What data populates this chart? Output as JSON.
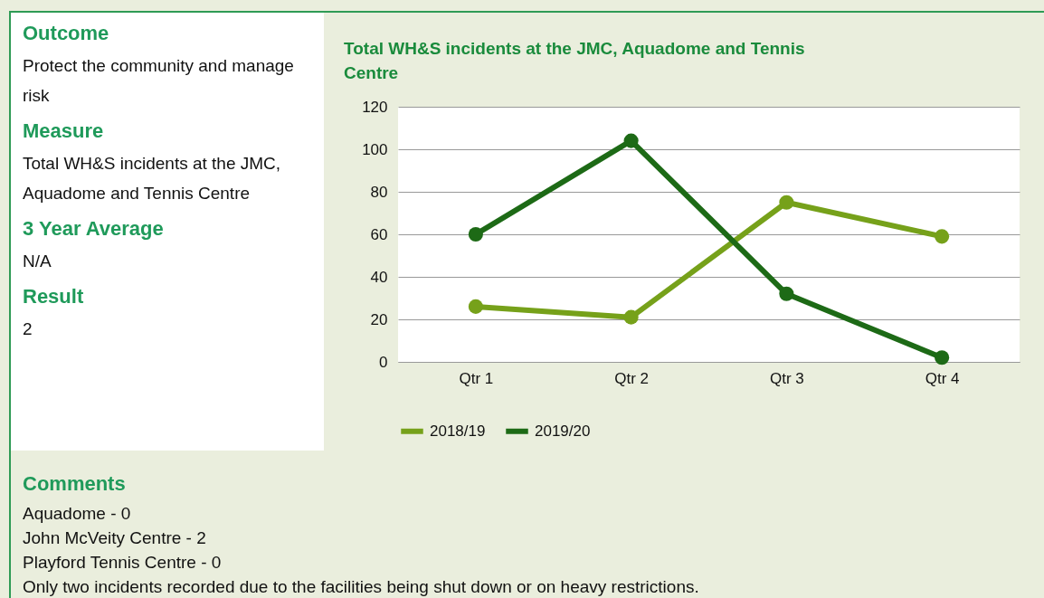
{
  "chart_data": [
    {
      "type": "other",
      "annotations": [
        "Outcome",
        "Protect the community and manage risk",
        "Measure",
        "Total WH&S incidents at the JMC, Aquadome and Tennis Centre",
        "3 Year Average",
        "N/A",
        "Result",
        "2"
      ]
    },
    {
      "type": "line",
      "title": "Total WH&S incidents at the JMC, Aquadome and Tennis Centre",
      "categories": [
        "Qtr 1",
        "Qtr 2",
        "Qtr 3",
        "Qtr 4"
      ],
      "series": [
        {
          "name": "2018/19",
          "color": "#76a11a",
          "values": [
            26,
            21,
            75,
            59
          ]
        },
        {
          "name": "2019/20",
          "color": "#1d6a16",
          "values": [
            60,
            104,
            32,
            2
          ]
        }
      ],
      "ylim": [
        0,
        120
      ],
      "yticks": [
        0,
        20,
        40,
        60,
        80,
        100,
        120
      ],
      "grid": "y",
      "legend": "bottom",
      "marker": "circle",
      "line_style": "solid"
    },
    {
      "type": "other",
      "title": "Comments",
      "annotations": [
        "Aquadome - 0",
        "John McVeity Centre - 2",
        "Playford Tennis Centre - 0",
        "Only two incidents recorded due to the facilities being shut down or on heavy restrictions."
      ]
    }
  ]
}
